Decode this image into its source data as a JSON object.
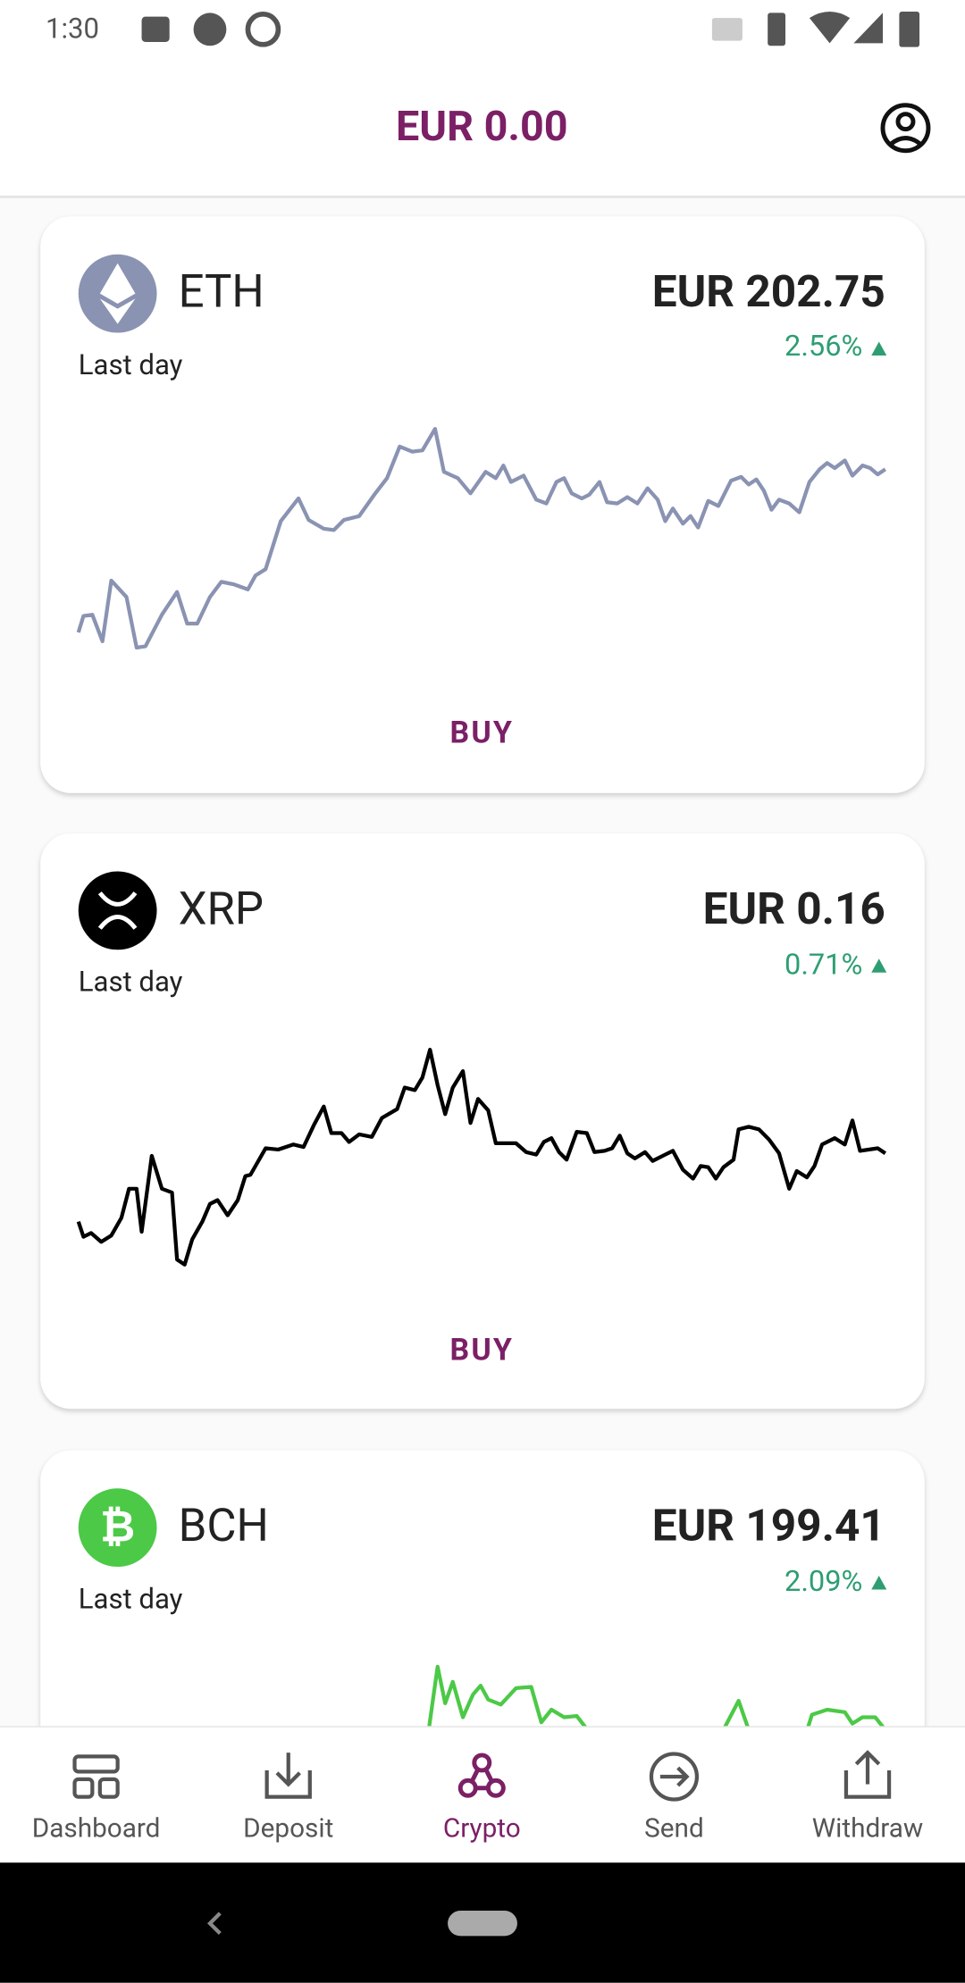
{
  "status_bar": {
    "time": "1:30"
  },
  "header": {
    "balance": "EUR 0.00"
  },
  "cards": [
    {
      "symbol": "ETH",
      "period": "Last day",
      "price": "EUR 202.75",
      "change": "2.56%",
      "action": "BUY"
    },
    {
      "symbol": "XRP",
      "period": "Last day",
      "price": "EUR 0.16",
      "change": "0.71%",
      "action": "BUY"
    },
    {
      "symbol": "BCH",
      "period": "Last day",
      "price": "EUR 199.41",
      "change": "2.09%"
    }
  ],
  "nav": [
    "Dashboard",
    "Deposit",
    "Crypto",
    "Send",
    "Withdraw"
  ]
}
